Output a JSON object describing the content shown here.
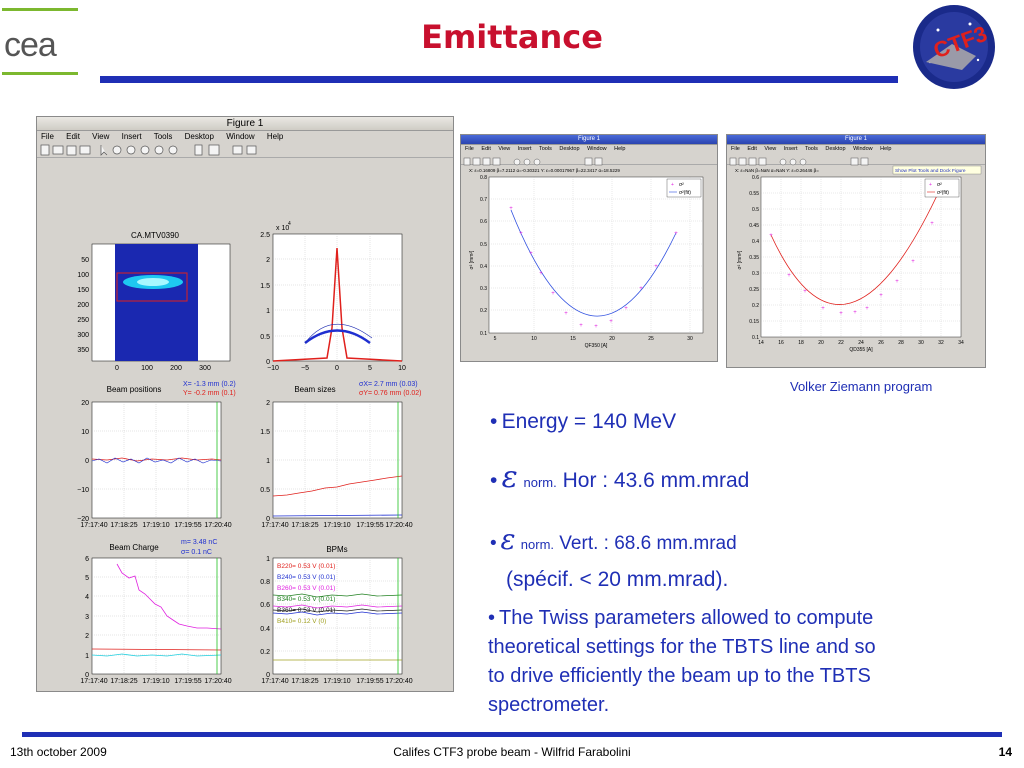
{
  "slide": {
    "title": "Emittance",
    "credit": "Volker Ziemann program",
    "footer_left": "13th october 2009",
    "footer_center": "Califes CTF3 probe beam - Wilfrid Farabolini",
    "page_number": "14",
    "logo_left_text": "cea",
    "logo_right_text": "CTF3"
  },
  "bullets": {
    "b1_text": "Energy = 140 MeV",
    "b2_sub": "norm.",
    "b2_text": "Hor : 43.6 mm.mrad",
    "b3_sub": "norm.",
    "b3_text": "Vert. : 68.6 mm.mrad",
    "b3_note": "(spécif. < 20 mm.mrad).",
    "b4_line1": "The Twiss parameters allowed to compute",
    "b4_line2": "theoretical settings for the TBTS line and so",
    "b4_line3": "to drive efficiently the beam up to the TBTS",
    "b4_line4": "spectrometer.",
    "symbol": "ε",
    "accent_color": "#1f2fb5"
  },
  "figure_main": {
    "window_title": "Figure 1",
    "menu": [
      "File",
      "Edit",
      "View",
      "Insert",
      "Tools",
      "Desktop",
      "Window",
      "Help"
    ],
    "image_title": "CA.MTV0390",
    "image_yticks": [
      "50",
      "100",
      "150",
      "200",
      "250",
      "300",
      "350"
    ],
    "image_xticks": [
      "0",
      "100",
      "200",
      "300"
    ],
    "profile_exp": "x 10",
    "profile_exp_power": "4",
    "profile_yticks": [
      "2.5",
      "2",
      "1.5",
      "1",
      "0.5",
      "0"
    ],
    "profile_xticks": [
      "−10",
      "−5",
      "0",
      "5",
      "10"
    ],
    "pos_x_label": "X= -1.3 mm  (0.2)",
    "pos_y_label": "Y= -0.2 mm  (0.1)",
    "size_x_label": "σX= 2.7 mm  (0.03)",
    "size_y_label": "σY= 0.76 mm  (0.02)",
    "beam_positions_title": "Beam positions",
    "beam_sizes_title": "Beam sizes",
    "pos_yticks": [
      "20",
      "10",
      "0",
      "−10",
      "−20"
    ],
    "size_yticks": [
      "2",
      "1.5",
      "1",
      "0.5",
      "0"
    ],
    "time_ticks": [
      "17:17:40",
      "17:18:25",
      "17:19:10",
      "17:19:55",
      "17:20:40"
    ],
    "charge_title": "Beam Charge",
    "charge_m": "m=  3.48 nC",
    "charge_sigma": "σ=  0.1 nC",
    "charge_yticks": [
      "6",
      "5",
      "4",
      "3",
      "2",
      "1",
      "0"
    ],
    "bpm_title": "BPMs",
    "bpm_yticks": [
      "1",
      "0.8",
      "0.6",
      "0.4",
      "0.2",
      "0"
    ],
    "bpm_labels": [
      {
        "text": "B220= 0.53 V  (0.01)",
        "color": "#e0201c"
      },
      {
        "text": "B240= 0.53 V  (0.01)",
        "color": "#1f2fd0"
      },
      {
        "text": "B260= 0.53 V  (0.01)",
        "color": "#e020e0"
      },
      {
        "text": "B340= 0.53 V  (0.01)",
        "color": "#208020"
      },
      {
        "text": "B360= 0.53 V  (0.01)",
        "color": "#202020"
      },
      {
        "text": "B410= 0.12 V  (0)",
        "color": "#a0a020"
      }
    ]
  },
  "figure_h": {
    "window_title": "Figure 1",
    "menu": [
      "File",
      "Edit",
      "View",
      "Insert",
      "Tools",
      "Desktop",
      "Window",
      "Help"
    ],
    "readout": "X: ε=0.16809  β=7.2112  α=-0.30321    Y: ε=0.00017967  β=22.3417  α=18.5229",
    "ylabel": "σ² [mm²]",
    "xlabel": "QF350 [A]",
    "legend1": "σ²",
    "legend2": "σ²(fit)",
    "yticks": [
      "0.8",
      "0.7",
      "0.6",
      "0.5",
      "0.4",
      "0.3",
      "0.2",
      "0.1"
    ],
    "xticks": [
      "5",
      "10",
      "15",
      "20",
      "25",
      "30"
    ]
  },
  "figure_v": {
    "window_title": "Figure 1",
    "menu": [
      "File",
      "Edit",
      "View",
      "Insert",
      "Tools",
      "Desktop",
      "Window",
      "Help"
    ],
    "readout": "X: ε=NaN  β=NaN  α=NaN      Y: ε=0.26446  β=",
    "tooltip": "Show Plot Tools and Dock Figure",
    "ylabel": "σ² [mm²]",
    "xlabel": "QD355 [A]",
    "legend1": "σ²",
    "legend2": "σ²(fit)",
    "yticks": [
      "0.6",
      "0.55",
      "0.5",
      "0.45",
      "0.4",
      "0.35",
      "0.3",
      "0.25",
      "0.2",
      "0.15",
      "0.1"
    ],
    "xticks": [
      "14",
      "16",
      "18",
      "20",
      "22",
      "24",
      "26",
      "28",
      "30",
      "32",
      "34"
    ]
  }
}
